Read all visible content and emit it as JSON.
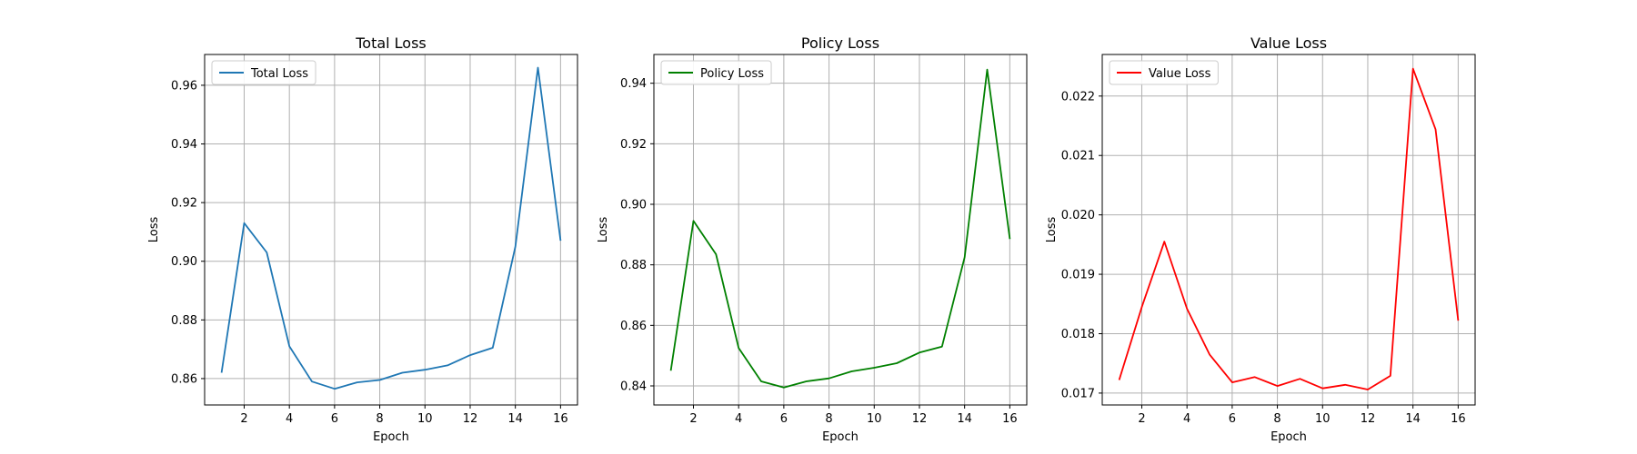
{
  "chart_data": [
    {
      "type": "line",
      "title": "Total Loss",
      "xlabel": "Epoch",
      "ylabel": "Loss",
      "color": "#1f77b4",
      "legend_placement": "top-left",
      "grid": true,
      "xlim": [
        0.25,
        16.75
      ],
      "ylim": [
        0.851,
        0.9705
      ],
      "xticks": [
        2,
        4,
        6,
        8,
        10,
        12,
        14,
        16
      ],
      "yticks": [
        0.86,
        0.88,
        0.9,
        0.92,
        0.94,
        0.96
      ],
      "ytick_labels": [
        "0.86",
        "0.88",
        "0.90",
        "0.92",
        "0.94",
        "0.96"
      ],
      "series": [
        {
          "name": "Total Loss",
          "x": [
            1,
            2,
            3,
            4,
            5,
            6,
            7,
            8,
            9,
            10,
            11,
            12,
            13,
            14,
            15,
            16
          ],
          "y": [
            0.862,
            0.913,
            0.903,
            0.871,
            0.859,
            0.8565,
            0.8587,
            0.8595,
            0.862,
            0.863,
            0.8645,
            0.868,
            0.8705,
            0.905,
            0.966,
            0.907
          ]
        }
      ]
    },
    {
      "type": "line",
      "title": "Policy Loss",
      "xlabel": "Epoch",
      "ylabel": "Loss",
      "color": "#008000",
      "legend_placement": "top-left",
      "grid": true,
      "xlim": [
        0.25,
        16.75
      ],
      "ylim": [
        0.8337,
        0.9495
      ],
      "xticks": [
        2,
        4,
        6,
        8,
        10,
        12,
        14,
        16
      ],
      "yticks": [
        0.84,
        0.86,
        0.88,
        0.9,
        0.92,
        0.94
      ],
      "ytick_labels": [
        "0.84",
        "0.86",
        "0.88",
        "0.90",
        "0.92",
        "0.94"
      ],
      "series": [
        {
          "name": "Policy Loss",
          "x": [
            1,
            2,
            3,
            4,
            5,
            6,
            7,
            8,
            9,
            10,
            11,
            12,
            13,
            14,
            15,
            16
          ],
          "y": [
            0.845,
            0.8945,
            0.8835,
            0.8525,
            0.8415,
            0.8395,
            0.8415,
            0.8425,
            0.8448,
            0.846,
            0.8475,
            0.851,
            0.853,
            0.8825,
            0.9445,
            0.8885
          ]
        }
      ]
    },
    {
      "type": "line",
      "title": "Value Loss",
      "xlabel": "Epoch",
      "ylabel": "Loss",
      "color": "#ff0000",
      "legend_placement": "top-left",
      "grid": true,
      "xlim": [
        0.25,
        16.75
      ],
      "ylim": [
        0.0168,
        0.0227
      ],
      "xticks": [
        2,
        4,
        6,
        8,
        10,
        12,
        14,
        16
      ],
      "yticks": [
        0.017,
        0.018,
        0.019,
        0.02,
        0.021,
        0.022
      ],
      "ytick_labels": [
        "0.017",
        "0.018",
        "0.019",
        "0.020",
        "0.021",
        "0.022"
      ],
      "series": [
        {
          "name": "Value Loss",
          "x": [
            1,
            2,
            3,
            4,
            5,
            6,
            7,
            8,
            9,
            10,
            11,
            12,
            13,
            14,
            15,
            16
          ],
          "y": [
            0.01722,
            0.01845,
            0.01955,
            0.01842,
            0.01765,
            0.01718,
            0.01727,
            0.01712,
            0.01724,
            0.01708,
            0.01714,
            0.01706,
            0.01729,
            0.02246,
            0.02144,
            0.01822
          ]
        }
      ]
    }
  ]
}
